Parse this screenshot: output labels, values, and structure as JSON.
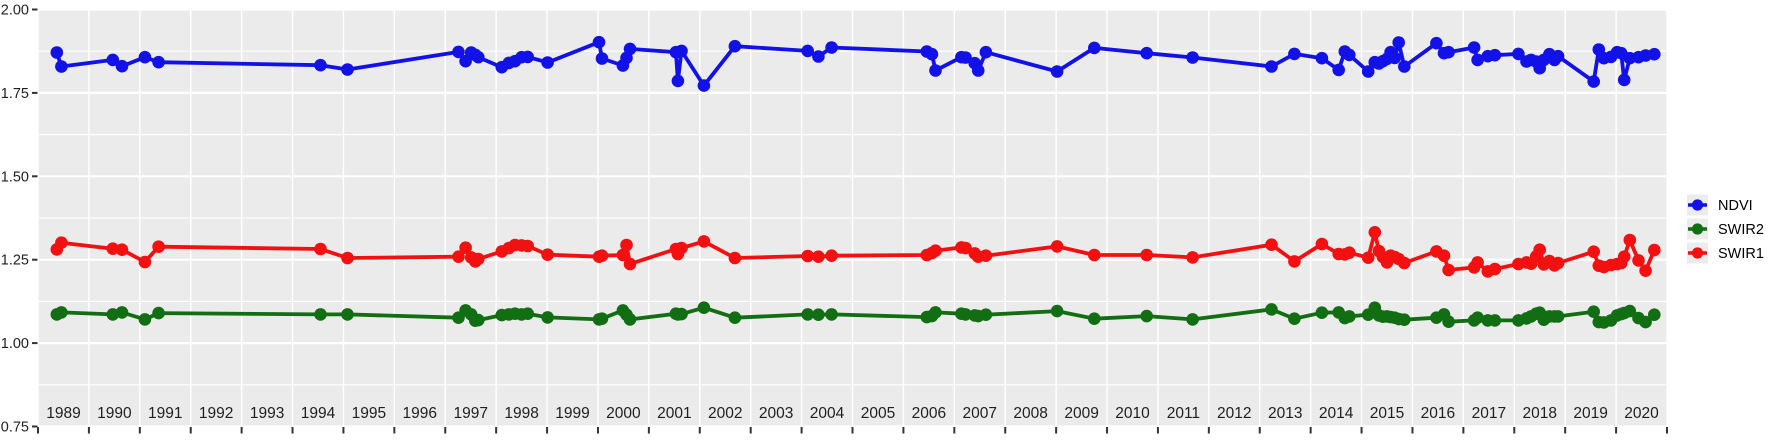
{
  "figure": {
    "background": "#ffffff",
    "panel_background": "#ebebeb",
    "grid_color": "#ffffff",
    "tick_color": "#333333",
    "axis_text_color": "#1f1f1f",
    "legend_text_color": "#000000",
    "legend_key_background": "#ececec"
  },
  "chart_data": {
    "type": "line",
    "title": "",
    "xlabel": "",
    "ylabel": "",
    "legend_position": "right",
    "grid": "major+minor, white on gray panel",
    "x_axis": {
      "range": [
        1989,
        2021
      ],
      "tick_years": [
        "1989",
        "1990",
        "1991",
        "1992",
        "1993",
        "1994",
        "1995",
        "1996",
        "1997",
        "1998",
        "1999",
        "2000",
        "2001",
        "2002",
        "2003",
        "2004",
        "2005",
        "2006",
        "2007",
        "2008",
        "2009",
        "2010",
        "2011",
        "2012",
        "2013",
        "2014",
        "2015",
        "2016",
        "2017",
        "2018",
        "2019",
        "2020"
      ]
    },
    "y_axis": {
      "range": [
        0.75,
        2.0
      ],
      "ticks": [
        0.75,
        1.0,
        1.25,
        1.5,
        1.75,
        2.0
      ],
      "tick_labels": [
        "0.75",
        "1.00",
        "1.25",
        "1.50",
        "1.75",
        "2.00"
      ],
      "minor_step": 0.125
    },
    "x": [
      1989.37,
      1989.46,
      1990.47,
      1990.65,
      1991.1,
      1991.37,
      1994.55,
      1995.08,
      1997.26,
      1997.4,
      1997.51,
      1997.59,
      1997.65,
      1998.11,
      1998.25,
      1998.37,
      1998.5,
      1998.62,
      1999.01,
      2000.02,
      2000.08,
      2000.49,
      2000.56,
      2000.63,
      2001.53,
      2001.57,
      2001.64,
      2002.08,
      2002.69,
      2004.12,
      2004.33,
      2004.59,
      2006.46,
      2006.56,
      2006.63,
      2007.14,
      2007.22,
      2007.4,
      2007.47,
      2007.62,
      2009.02,
      2009.75,
      2010.78,
      2011.68,
      2013.23,
      2013.68,
      2014.22,
      2014.55,
      2014.67,
      2014.76,
      2015.13,
      2015.26,
      2015.34,
      2015.42,
      2015.5,
      2015.57,
      2015.65,
      2015.73,
      2015.84,
      2016.47,
      2016.62,
      2016.71,
      2017.21,
      2017.28,
      2017.48,
      2017.62,
      2018.08,
      2018.24,
      2018.33,
      2018.43,
      2018.5,
      2018.58,
      2018.69,
      2018.79,
      2018.86,
      2019.56,
      2019.66,
      2019.76,
      2019.9,
      2020.02,
      2020.1,
      2020.16,
      2020.27,
      2020.44,
      2020.58,
      2020.75
    ],
    "series": [
      {
        "name": "NDVI",
        "color": "#1111e8",
        "values": [
          1.871,
          1.829,
          1.849,
          1.83,
          1.857,
          1.842,
          1.833,
          1.82,
          1.873,
          1.845,
          1.871,
          1.864,
          1.857,
          1.827,
          1.84,
          1.845,
          1.857,
          1.858,
          1.841,
          1.902,
          1.853,
          1.832,
          1.855,
          1.882,
          1.872,
          1.786,
          1.876,
          1.772,
          1.89,
          1.876,
          1.859,
          1.886,
          1.874,
          1.866,
          1.817,
          1.857,
          1.856,
          1.839,
          1.817,
          1.872,
          1.814,
          1.885,
          1.869,
          1.856,
          1.829,
          1.867,
          1.854,
          1.819,
          1.874,
          1.864,
          1.814,
          1.842,
          1.838,
          1.845,
          1.852,
          1.872,
          1.855,
          1.901,
          1.829,
          1.899,
          1.869,
          1.872,
          1.886,
          1.849,
          1.86,
          1.863,
          1.867,
          1.844,
          1.849,
          1.844,
          1.824,
          1.849,
          1.866,
          1.849,
          1.86,
          1.784,
          1.88,
          1.854,
          1.858,
          1.872,
          1.869,
          1.789,
          1.854,
          1.857,
          1.862,
          1.866
        ]
      },
      {
        "name": "SWIR2",
        "color": "#126e12",
        "values": [
          1.086,
          1.092,
          1.086,
          1.092,
          1.071,
          1.09,
          1.086,
          1.086,
          1.076,
          1.098,
          1.086,
          1.067,
          1.069,
          1.084,
          1.086,
          1.088,
          1.086,
          1.088,
          1.077,
          1.071,
          1.073,
          1.098,
          1.085,
          1.071,
          1.088,
          1.086,
          1.087,
          1.106,
          1.076,
          1.086,
          1.085,
          1.086,
          1.078,
          1.081,
          1.092,
          1.088,
          1.086,
          1.083,
          1.081,
          1.085,
          1.096,
          1.073,
          1.081,
          1.071,
          1.101,
          1.073,
          1.091,
          1.092,
          1.075,
          1.08,
          1.085,
          1.106,
          1.083,
          1.079,
          1.08,
          1.078,
          1.076,
          1.072,
          1.07,
          1.076,
          1.086,
          1.064,
          1.068,
          1.076,
          1.068,
          1.068,
          1.068,
          1.074,
          1.08,
          1.088,
          1.091,
          1.07,
          1.08,
          1.08,
          1.08,
          1.094,
          1.063,
          1.062,
          1.068,
          1.083,
          1.087,
          1.09,
          1.096,
          1.075,
          1.063,
          1.085
        ]
      },
      {
        "name": "SWIR1",
        "color": "#f21010",
        "values": [
          1.281,
          1.301,
          1.283,
          1.28,
          1.243,
          1.289,
          1.282,
          1.255,
          1.259,
          1.286,
          1.257,
          1.245,
          1.252,
          1.275,
          1.285,
          1.294,
          1.293,
          1.291,
          1.265,
          1.259,
          1.262,
          1.264,
          1.294,
          1.237,
          1.282,
          1.267,
          1.285,
          1.305,
          1.255,
          1.261,
          1.259,
          1.262,
          1.264,
          1.27,
          1.277,
          1.287,
          1.285,
          1.269,
          1.259,
          1.262,
          1.29,
          1.264,
          1.264,
          1.257,
          1.295,
          1.245,
          1.297,
          1.267,
          1.266,
          1.271,
          1.256,
          1.332,
          1.276,
          1.258,
          1.242,
          1.262,
          1.258,
          1.252,
          1.24,
          1.275,
          1.262,
          1.219,
          1.227,
          1.242,
          1.215,
          1.222,
          1.237,
          1.242,
          1.238,
          1.26,
          1.28,
          1.236,
          1.246,
          1.233,
          1.24,
          1.274,
          1.232,
          1.228,
          1.234,
          1.237,
          1.24,
          1.259,
          1.309,
          1.248,
          1.217,
          1.279
        ]
      }
    ],
    "legend": {
      "items": [
        "NDVI",
        "SWIR2",
        "SWIR1"
      ]
    }
  }
}
